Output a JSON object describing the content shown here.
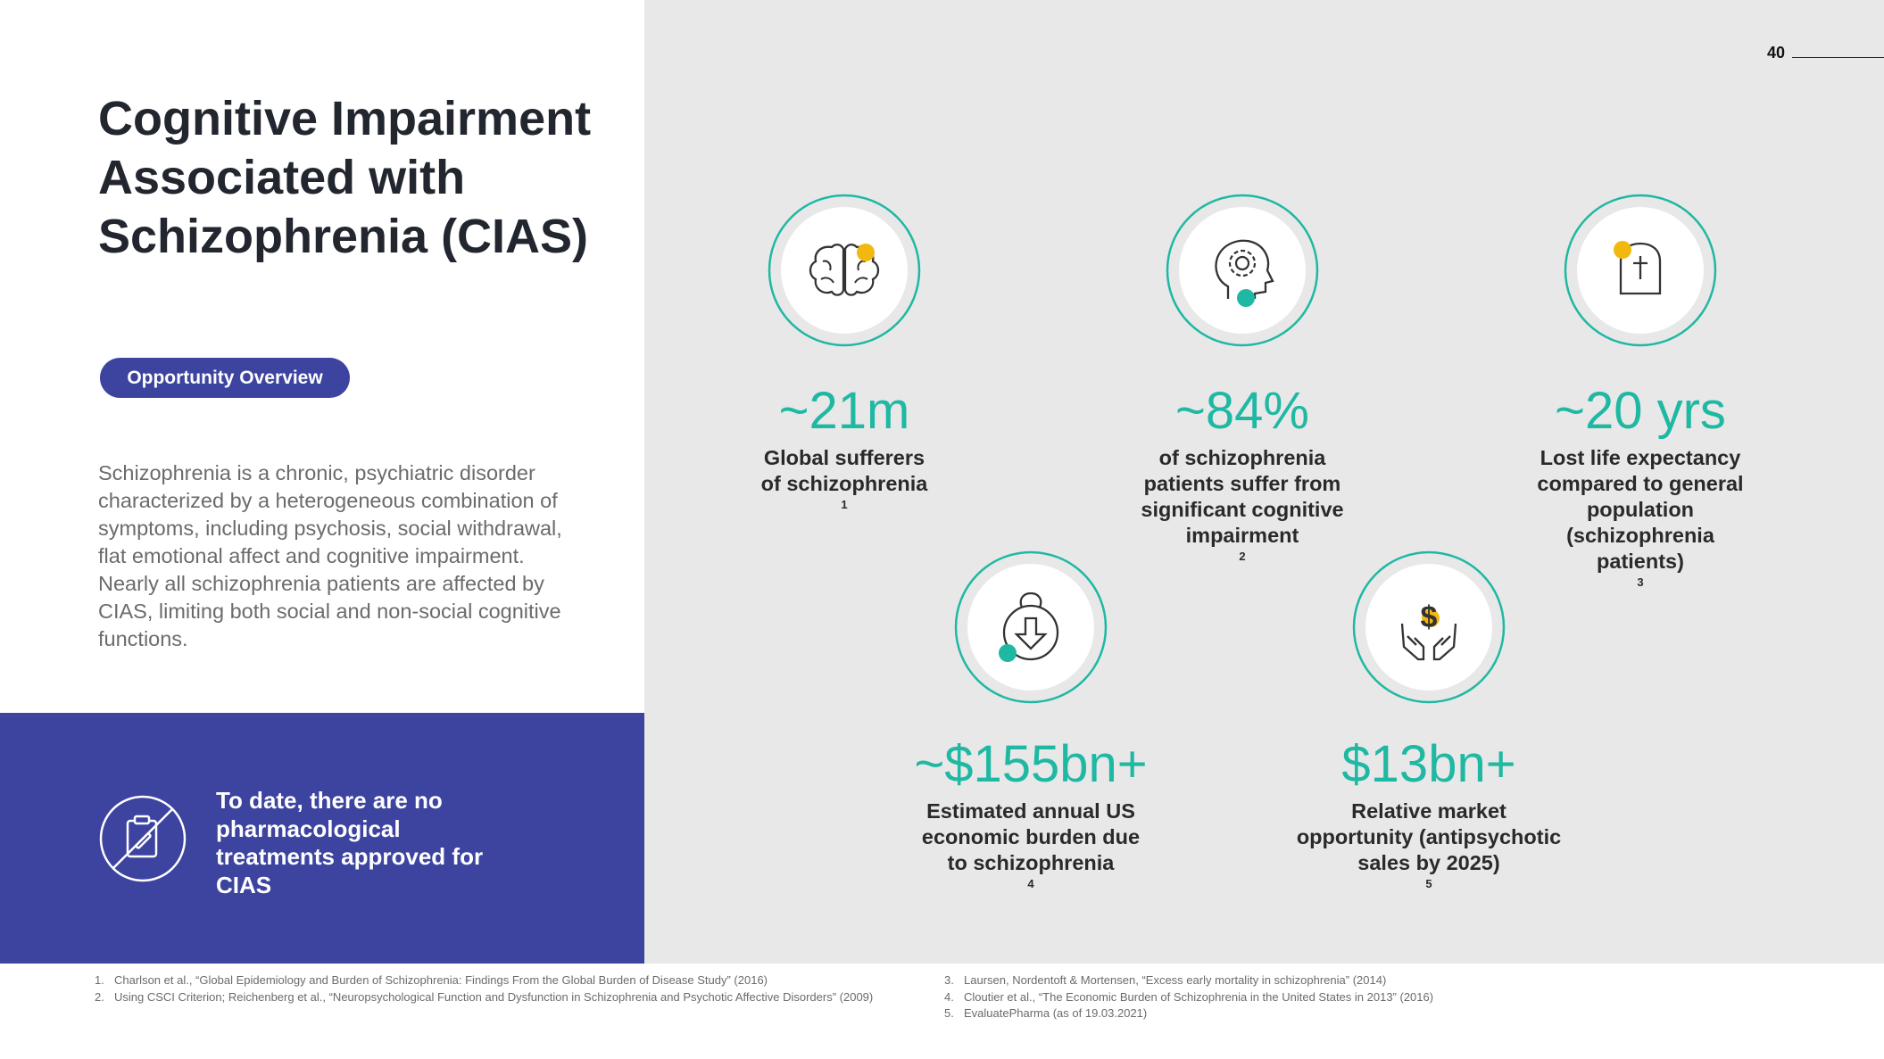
{
  "page_number": "40",
  "title": {
    "line1": "Cognitive Impairment",
    "line2": "Associated with",
    "line3": "Schizophrenia (CIAS)"
  },
  "badge": "Opportunity Overview",
  "description": "Schizophrenia is a chronic, psychiatric disorder characterized by a heterogeneous combination of symptoms, including psychosis, social withdrawal, flat emotional affect and cognitive impairment.  Nearly all schizophrenia patients are affected by CIAS, limiting both social and non-social cognitive functions.",
  "callout": {
    "icon": "no-medication-icon",
    "text": "To date, there are no pharmacological treatments approved for CIAS"
  },
  "colors": {
    "accent_teal": "#1fb8a3",
    "brand_blue": "#3d44a0",
    "highlight_yellow": "#f2b80f",
    "panel_grey": "#e8e8e8"
  },
  "stats": [
    {
      "icon": "brain-icon",
      "value": "~21m",
      "label_lines": [
        "Global sufferers",
        "of schizophrenia "
      ],
      "ref": "1"
    },
    {
      "icon": "head-gear-icon",
      "value": "~84%",
      "label_lines": [
        "of schizophrenia",
        "patients suffer from",
        "significant cognitive",
        "impairment"
      ],
      "ref": "2"
    },
    {
      "icon": "tombstone-icon",
      "value": "~20 yrs",
      "label_lines": [
        "Lost life expectancy",
        "compared to general",
        "population",
        "(schizophrenia",
        "patients)"
      ],
      "ref": "3"
    },
    {
      "icon": "money-bag-down-icon",
      "value": "~$155bn+",
      "label_lines": [
        "Estimated annual US",
        "economic burden due",
        "to schizophrenia"
      ],
      "ref": "4"
    },
    {
      "icon": "hands-dollar-icon",
      "value": "$13bn+",
      "label_lines": [
        "Relative market",
        "opportunity (antipsychotic",
        "sales by 2025)"
      ],
      "ref": "5"
    }
  ],
  "footnotes": [
    {
      "num": "1.",
      "text": "Charlson et al., “Global Epidemiology and Burden of Schizophrenia: Findings From the Global Burden of Disease Study” (2016)"
    },
    {
      "num": "2.",
      "text": "Using CSCI Criterion; Reichenberg et al., “Neuropsychological Function and Dysfunction in Schizophrenia and Psychotic Affective Disorders” (2009)"
    },
    {
      "num": "3.",
      "text": "Laursen, Nordentoft & Mortensen, “Excess early mortality in schizophrenia” (2014)"
    },
    {
      "num": "4.",
      "text": "Cloutier et al., “The Economic Burden of Schizophrenia in the United States in 2013” (2016)"
    },
    {
      "num": "5.",
      "text": "EvaluatePharma (as of 19.03.2021)"
    }
  ]
}
